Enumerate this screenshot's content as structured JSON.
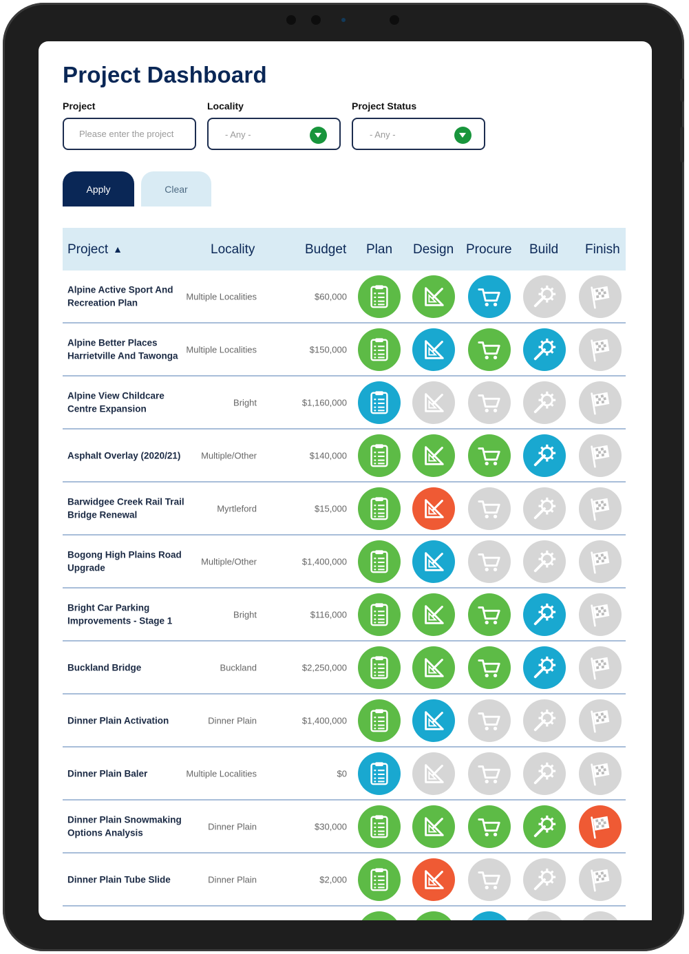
{
  "page": {
    "title": "Project Dashboard",
    "filters": {
      "project_label": "Project",
      "project_placeholder": "Please enter the project",
      "locality_label": "Locality",
      "locality_value": "- Any -",
      "status_label": "Project Status",
      "status_value": "- Any -"
    },
    "buttons": {
      "apply": "Apply",
      "clear": "Clear"
    },
    "table": {
      "columns": [
        "Project",
        "Locality",
        "Budget",
        "Plan",
        "Design",
        "Procure",
        "Build",
        "Finish"
      ],
      "sort": {
        "column": "Project",
        "direction": "ascending"
      },
      "rows": [
        {
          "project": "Alpine Active Sport And Recreation Plan",
          "locality": "Multiple Localities",
          "budget": "$60,000",
          "stages": [
            "green",
            "green",
            "blue",
            "grey",
            "grey"
          ]
        },
        {
          "project": "Alpine Better Places Harrietville And Tawonga",
          "locality": "Multiple Localities",
          "budget": "$150,000",
          "stages": [
            "green",
            "blue",
            "green",
            "blue",
            "grey"
          ]
        },
        {
          "project": "Alpine View Childcare Centre Expansion",
          "locality": "Bright",
          "budget": "$1,160,000",
          "stages": [
            "blue",
            "grey",
            "grey",
            "grey",
            "grey"
          ]
        },
        {
          "project": "Asphalt Overlay (2020/21)",
          "locality": "Multiple/Other",
          "budget": "$140,000",
          "stages": [
            "green",
            "green",
            "green",
            "blue",
            "grey"
          ]
        },
        {
          "project": "Barwidgee Creek Rail Trail Bridge Renewal",
          "locality": "Myrtleford",
          "budget": "$15,000",
          "stages": [
            "green",
            "orange",
            "grey",
            "grey",
            "grey"
          ]
        },
        {
          "project": "Bogong High Plains Road Upgrade",
          "locality": "Multiple/Other",
          "budget": "$1,400,000",
          "stages": [
            "green",
            "blue",
            "grey",
            "grey",
            "grey"
          ]
        },
        {
          "project": "Bright Car Parking Improvements - Stage 1",
          "locality": "Bright",
          "budget": "$116,000",
          "stages": [
            "green",
            "green",
            "green",
            "blue",
            "grey"
          ]
        },
        {
          "project": "Buckland Bridge",
          "locality": "Buckland",
          "budget": "$2,250,000",
          "stages": [
            "green",
            "green",
            "green",
            "blue",
            "grey"
          ]
        },
        {
          "project": "Dinner Plain Activation",
          "locality": "Dinner Plain",
          "budget": "$1,400,000",
          "stages": [
            "green",
            "blue",
            "grey",
            "grey",
            "grey"
          ]
        },
        {
          "project": "Dinner Plain Baler",
          "locality": "Multiple Localities",
          "budget": "$0",
          "stages": [
            "blue",
            "grey",
            "grey",
            "grey",
            "grey"
          ]
        },
        {
          "project": "Dinner Plain Snowmaking Options Analysis",
          "locality": "Dinner Plain",
          "budget": "$30,000",
          "stages": [
            "green",
            "green",
            "green",
            "green",
            "orange"
          ]
        },
        {
          "project": "Dinner Plain Tube Slide",
          "locality": "Dinner Plain",
          "budget": "$2,000",
          "stages": [
            "green",
            "orange",
            "grey",
            "grey",
            "grey"
          ]
        },
        {
          "project": "",
          "locality": "",
          "budget": "",
          "stages": [
            "green",
            "green",
            "blue",
            "grey",
            "grey"
          ]
        }
      ]
    },
    "stage_icons": [
      "clipboard-icon",
      "set-square-icon",
      "cart-icon",
      "wrench-gear-icon",
      "checkered-flag-icon"
    ],
    "colors": {
      "green": "#5dbb46",
      "blue": "#19a8d0",
      "orange": "#ef5a34",
      "grey": "#d6d6d6",
      "navy": "#0a2756",
      "header_bg": "#d9ebf4"
    }
  }
}
